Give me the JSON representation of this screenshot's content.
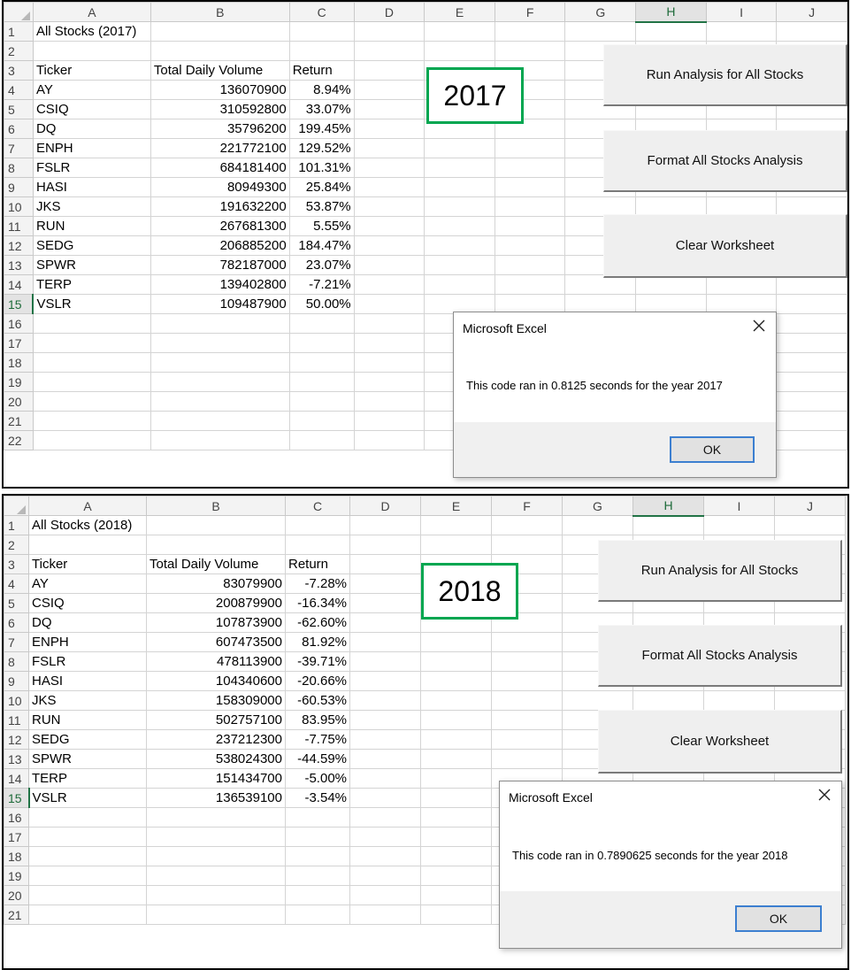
{
  "columns": [
    "A",
    "B",
    "C",
    "D",
    "E",
    "F",
    "G",
    "H",
    "I",
    "J"
  ],
  "selected_column": "H",
  "selected_row": 15,
  "screenshot_2017": {
    "title": "All Stocks (2017)",
    "headers": [
      "Ticker",
      "Total Daily Volume",
      "Return"
    ],
    "rows": [
      [
        "AY",
        "136070900",
        "8.94%"
      ],
      [
        "CSIQ",
        "310592800",
        "33.07%"
      ],
      [
        "DQ",
        "35796200",
        "199.45%"
      ],
      [
        "ENPH",
        "221772100",
        "129.52%"
      ],
      [
        "FSLR",
        "684181400",
        "101.31%"
      ],
      [
        "HASI",
        "80949300",
        "25.84%"
      ],
      [
        "JKS",
        "191632200",
        "53.87%"
      ],
      [
        "RUN",
        "267681300",
        "5.55%"
      ],
      [
        "SEDG",
        "206885200",
        "184.47%"
      ],
      [
        "SPWR",
        "782187000",
        "23.07%"
      ],
      [
        "TERP",
        "139402800",
        "-7.21%"
      ],
      [
        "VSLR",
        "109487900",
        "50.00%"
      ]
    ],
    "year_label": "2017",
    "buttons": {
      "run": "Run Analysis for All Stocks",
      "format": "Format All Stocks Analysis",
      "clear": "Clear Worksheet"
    },
    "dialog": {
      "title": "Microsoft Excel",
      "message": "This code ran in 0.8125 seconds for the year 2017",
      "ok": "OK"
    }
  },
  "screenshot_2018": {
    "title": "All Stocks (2018)",
    "headers": [
      "Ticker",
      "Total Daily Volume",
      "Return"
    ],
    "rows": [
      [
        "AY",
        "83079900",
        "-7.28%"
      ],
      [
        "CSIQ",
        "200879900",
        "-16.34%"
      ],
      [
        "DQ",
        "107873900",
        "-62.60%"
      ],
      [
        "ENPH",
        "607473500",
        "81.92%"
      ],
      [
        "FSLR",
        "478113900",
        "-39.71%"
      ],
      [
        "HASI",
        "104340600",
        "-20.66%"
      ],
      [
        "JKS",
        "158309000",
        "-60.53%"
      ],
      [
        "RUN",
        "502757100",
        "83.95%"
      ],
      [
        "SEDG",
        "237212300",
        "-7.75%"
      ],
      [
        "SPWR",
        "538024300",
        "-44.59%"
      ],
      [
        "TERP",
        "151434700",
        "-5.00%"
      ],
      [
        "VSLR",
        "136539100",
        "-3.54%"
      ]
    ],
    "year_label": "2018",
    "buttons": {
      "run": "Run Analysis for All Stocks",
      "format": "Format All Stocks Analysis",
      "clear": "Clear Worksheet"
    },
    "dialog": {
      "title": "Microsoft Excel",
      "message": "This code ran in 0.7890625 seconds for the year 2018",
      "ok": "OK"
    }
  }
}
